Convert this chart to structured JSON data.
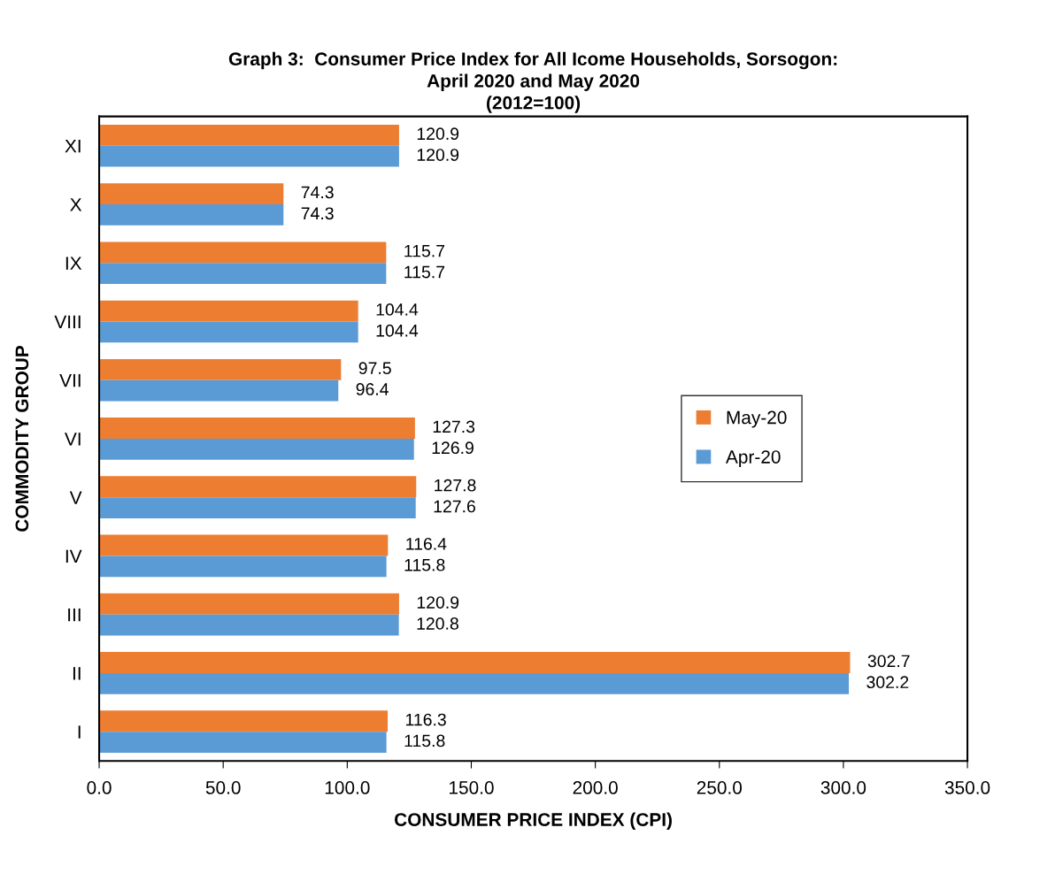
{
  "chart_data": {
    "type": "bar",
    "orientation": "horizontal",
    "title": "Graph 3:  Consumer Price Index for All Icome Households, Sorsogon:\nApril 2020 and May 2020\n(2012=100)",
    "xlabel": "CONSUMER PRICE INDEX (CPI)",
    "ylabel": "COMMODITY GROUP",
    "categories": [
      "XI",
      "X",
      "IX",
      "VIII",
      "VII",
      "VI",
      "V",
      "IV",
      "III",
      "II",
      "I"
    ],
    "series": [
      {
        "name": "May-20",
        "color": "#ed7d31",
        "values": [
          120.9,
          74.3,
          115.7,
          104.4,
          97.5,
          127.3,
          127.8,
          116.4,
          120.9,
          302.7,
          116.3
        ]
      },
      {
        "name": "Apr-20",
        "color": "#5b9bd5",
        "values": [
          120.9,
          74.3,
          115.7,
          104.4,
          96.4,
          126.9,
          127.6,
          115.8,
          120.8,
          302.2,
          115.8
        ]
      }
    ],
    "xlim": [
      0,
      350
    ],
    "xticks": [
      {
        "value": 0,
        "label": "0.0"
      },
      {
        "value": 50,
        "label": "50.0"
      },
      {
        "value": 100,
        "label": "100.0"
      },
      {
        "value": 150,
        "label": "150.0"
      },
      {
        "value": 200,
        "label": "200.0"
      },
      {
        "value": 250,
        "label": "250.0"
      },
      {
        "value": 300,
        "label": "300.0"
      },
      {
        "value": 350,
        "label": "350.0"
      }
    ],
    "data_labels": true,
    "legend": "right",
    "grid": false
  }
}
